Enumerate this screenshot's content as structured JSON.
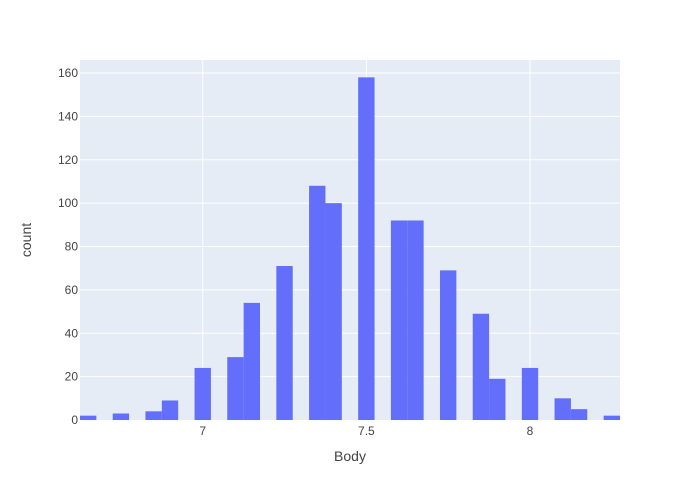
{
  "chart_data": {
    "type": "bar",
    "subtype": "histogram",
    "xlabel": "Body",
    "ylabel": "count",
    "xlim": [
      6.625,
      8.275
    ],
    "ylim": [
      0,
      166
    ],
    "bin_width": 0.05,
    "x_ticks": [
      7,
      7.5,
      8
    ],
    "x_tick_labels": [
      "7",
      "7.5",
      "8"
    ],
    "y_ticks": [
      0,
      20,
      40,
      60,
      80,
      100,
      120,
      140,
      160
    ],
    "y_tick_labels": [
      "0",
      "20",
      "40",
      "60",
      "80",
      "100",
      "120",
      "140",
      "160"
    ],
    "bins": [
      {
        "x0": 6.625,
        "x1": 6.675,
        "count": 2
      },
      {
        "x0": 6.725,
        "x1": 6.775,
        "count": 3
      },
      {
        "x0": 6.825,
        "x1": 6.875,
        "count": 4
      },
      {
        "x0": 6.875,
        "x1": 6.925,
        "count": 9
      },
      {
        "x0": 6.975,
        "x1": 7.025,
        "count": 24
      },
      {
        "x0": 7.075,
        "x1": 7.125,
        "count": 29
      },
      {
        "x0": 7.125,
        "x1": 7.175,
        "count": 54
      },
      {
        "x0": 7.225,
        "x1": 7.275,
        "count": 71
      },
      {
        "x0": 7.325,
        "x1": 7.375,
        "count": 108
      },
      {
        "x0": 7.375,
        "x1": 7.425,
        "count": 100
      },
      {
        "x0": 7.475,
        "x1": 7.525,
        "count": 158
      },
      {
        "x0": 7.575,
        "x1": 7.625,
        "count": 92
      },
      {
        "x0": 7.625,
        "x1": 7.675,
        "count": 92
      },
      {
        "x0": 7.725,
        "x1": 7.775,
        "count": 69
      },
      {
        "x0": 7.825,
        "x1": 7.875,
        "count": 49
      },
      {
        "x0": 7.875,
        "x1": 7.925,
        "count": 19
      },
      {
        "x0": 7.975,
        "x1": 8.025,
        "count": 24
      },
      {
        "x0": 8.075,
        "x1": 8.125,
        "count": 10
      },
      {
        "x0": 8.125,
        "x1": 8.175,
        "count": 5
      },
      {
        "x0": 8.225,
        "x1": 8.275,
        "count": 2
      }
    ],
    "grid": true,
    "legend": "none",
    "colors": {
      "bar": "#636efa",
      "plot_background": "#e5ecf6",
      "gridline": "#ffffff",
      "text": "#444444"
    }
  }
}
